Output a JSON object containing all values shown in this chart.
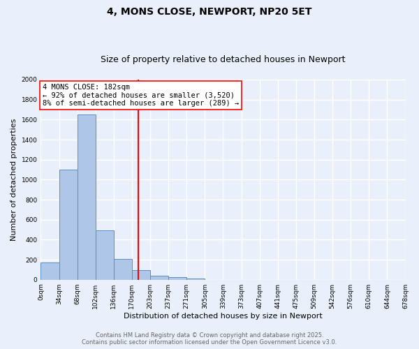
{
  "title": "4, MONS CLOSE, NEWPORT, NP20 5ET",
  "subtitle": "Size of property relative to detached houses in Newport",
  "xlabel": "Distribution of detached houses by size in Newport",
  "ylabel": "Number of detached properties",
  "footer_line1": "Contains HM Land Registry data © Crown copyright and database right 2025.",
  "footer_line2": "Contains public sector information licensed under the Open Government Licence v3.0.",
  "bin_labels": [
    "0sqm",
    "34sqm",
    "68sqm",
    "102sqm",
    "136sqm",
    "170sqm",
    "203sqm",
    "237sqm",
    "271sqm",
    "305sqm",
    "339sqm",
    "373sqm",
    "407sqm",
    "441sqm",
    "475sqm",
    "509sqm",
    "542sqm",
    "576sqm",
    "610sqm",
    "644sqm",
    "678sqm"
  ],
  "bar_values": [
    175,
    1100,
    1650,
    490,
    205,
    95,
    40,
    25,
    15,
    0,
    0,
    0,
    0,
    0,
    0,
    0,
    0,
    0,
    0,
    0
  ],
  "bar_color": "#aec6e8",
  "bar_edge_color": "#5a8fc2",
  "vline_x": 182,
  "vline_color": "red",
  "annotation_line1": "4 MONS CLOSE: 182sqm",
  "annotation_line2": "← 92% of detached houses are smaller (3,520)",
  "annotation_line3": "8% of semi-detached houses are larger (289) →",
  "annotation_box_color": "white",
  "annotation_box_edge": "red",
  "ylim": [
    0,
    2000
  ],
  "yticks": [
    0,
    200,
    400,
    600,
    800,
    1000,
    1200,
    1400,
    1600,
    1800,
    2000
  ],
  "bin_width": 34,
  "background_color": "#eaf0fb",
  "grid_color": "white",
  "title_fontsize": 10,
  "subtitle_fontsize": 9,
  "ylabel_fontsize": 8,
  "xlabel_fontsize": 8,
  "tick_fontsize": 6.5,
  "footer_fontsize": 6,
  "annotation_fontsize": 7.5
}
